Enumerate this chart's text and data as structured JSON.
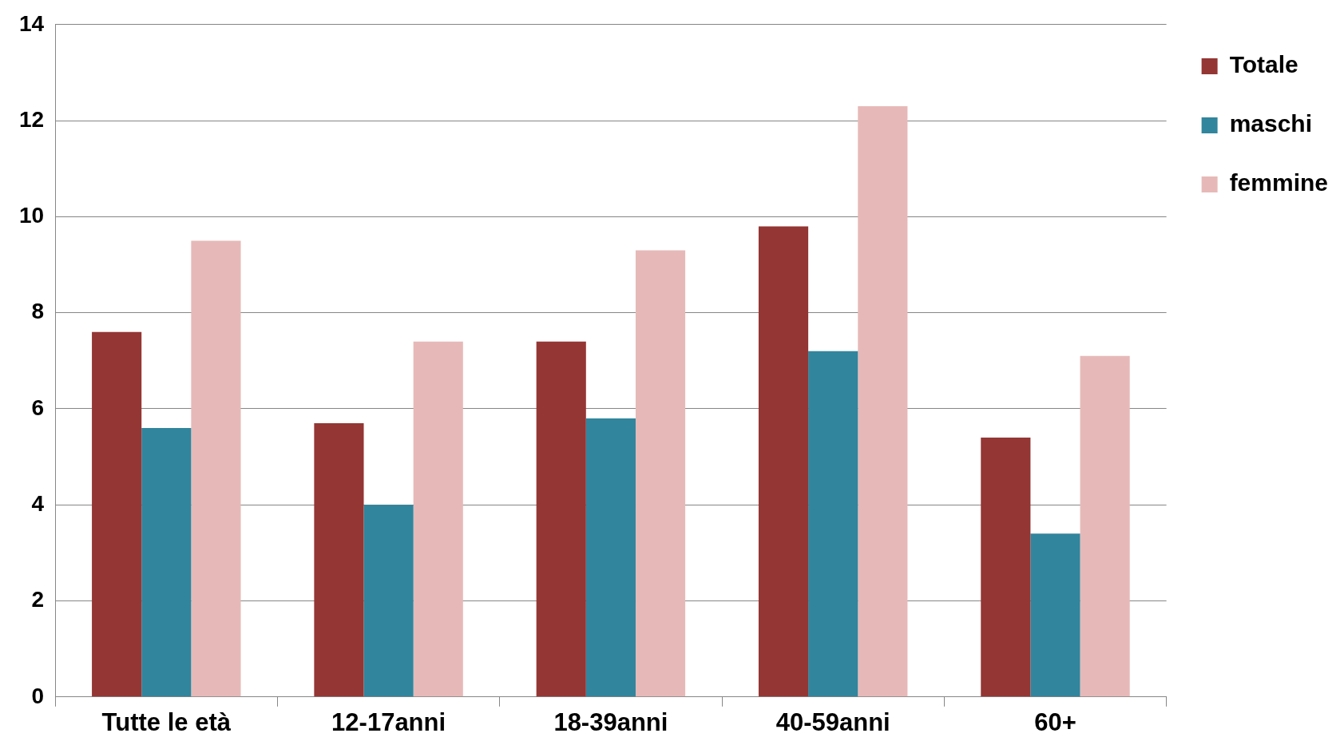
{
  "chart_data": {
    "type": "bar",
    "categories": [
      "Tutte le età",
      "12-17anni",
      "18-39anni",
      "40-59anni",
      "60+"
    ],
    "series": [
      {
        "name": "Totale",
        "color": "#943634",
        "values": [
          7.6,
          5.7,
          7.4,
          9.8,
          5.4
        ]
      },
      {
        "name": "maschi",
        "color": "#31859c",
        "values": [
          5.6,
          4.0,
          5.8,
          7.2,
          3.4
        ]
      },
      {
        "name": "femmine",
        "color": "#e6b9b8",
        "values": [
          9.5,
          7.4,
          9.3,
          12.3,
          7.1
        ]
      }
    ],
    "ylim": [
      0,
      14
    ],
    "yticks": [
      0,
      2,
      4,
      6,
      8,
      10,
      12,
      14
    ],
    "grid": "y",
    "legend": "top right"
  }
}
